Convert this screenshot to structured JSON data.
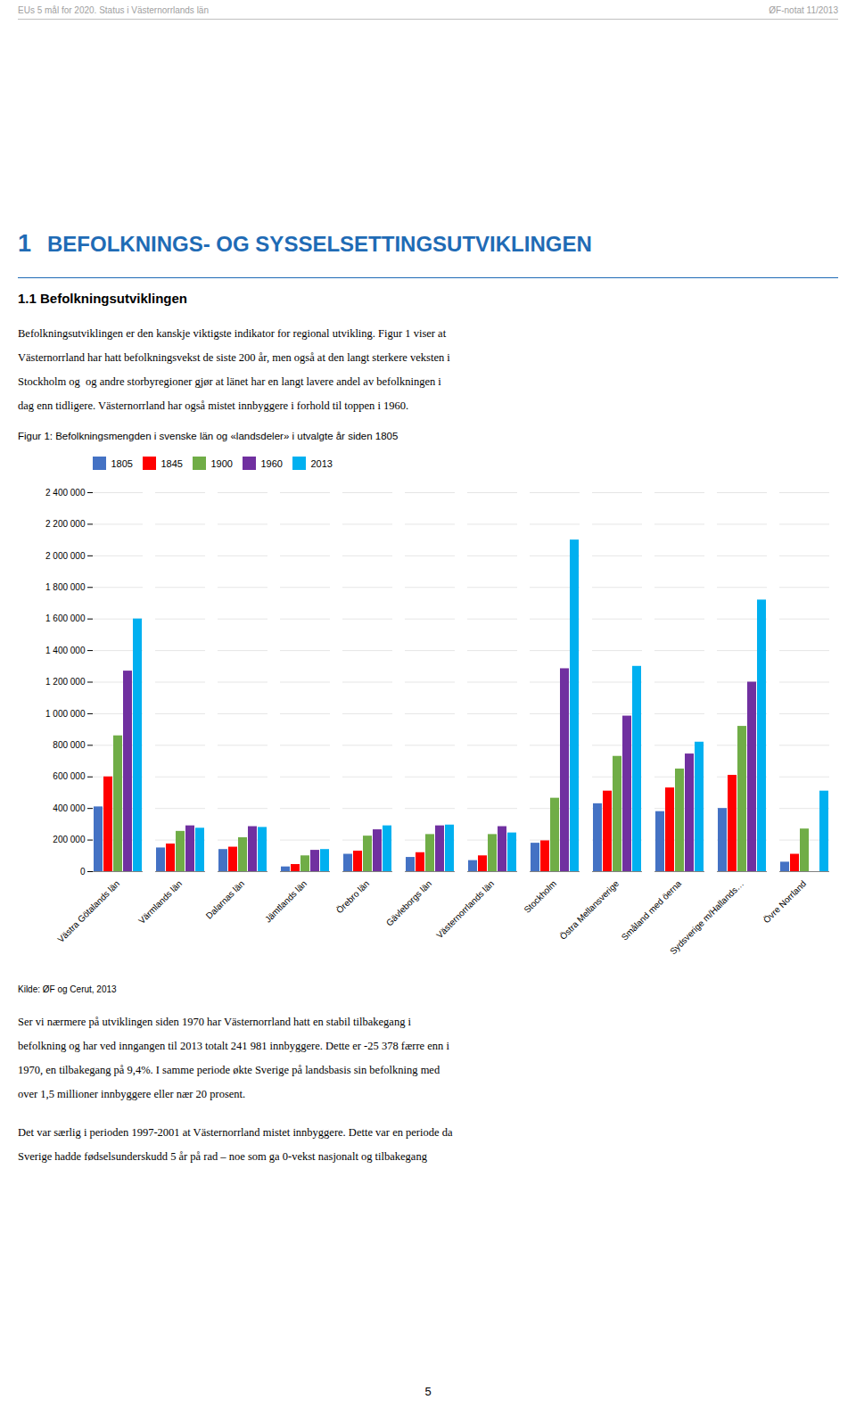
{
  "header_left": "EUs 5 mål for 2020. Status i Västernorrlands län",
  "header_right": "ØF-notat 11/2013",
  "section_number": "1",
  "section_title": "BEFOLKNINGS- OG SYSSELSETTINGSUTVIKLINGEN",
  "subsection": "1.1  Befolkningsutviklingen",
  "body_lines": [
    "Befolkningsutviklingen er den kanskje viktigste indikator for regional utvikling. Figur 1 viser at",
    "Västernorrland har hatt befolkningsvekst de siste 200 år, men også at den langt sterkere veksten i",
    "Stockholm og  og andre storbyregioner gjør at länet har en langt lavere andel av befolkningen i",
    "dag enn tidligere. Västernorrland har også mistet innbyggere i forhold til toppen i 1960."
  ],
  "source": "Kilde: ØF og Cerut, 2013",
  "footer1_lines": [
    "Ser vi nærmere på utviklingen siden 1970 har Västernorrland hatt en stabil tilbakegang i",
    "befolkning og har ved inngangen til 2013 totalt 241 981 innbyggere. Dette er -25 378 færre enn i",
    "1970, en tilbakegang på 9,4%. I samme periode økte Sverige på landsbasis sin befolkning med",
    "over 1,5 millioner innbyggere eller nær 20 prosent."
  ],
  "footer2_lines": [
    "Det var særlig i perioden 1997-2001 at Västernorrland mistet innbyggere. Dette var en periode da",
    "Sverige hadde fødselsunderskudd 5 år på rad – noe som ga 0-vekst nasjonalt og tilbakegang"
  ],
  "page_number": "5",
  "chart_data": {
    "type": "bar",
    "title": "Figur 1: Befolkningsmengden i svenske län og «landsdeler» i utvalgte år siden 1805",
    "categories": [
      "Västra Götalands län",
      "Värmlands län",
      "Dalarnas län",
      "Jämtlands län",
      "Örebro län",
      "Gävleborgs län",
      "Västernorrlands län",
      "Stockholm",
      "Östra Mellansverige",
      "Småland med öerna",
      "Sydsverige m/Hallands…",
      "Övre Norrland"
    ],
    "series": [
      {
        "name": "1805",
        "color": "#4472C4",
        "values": [
          410000,
          150000,
          140000,
          30000,
          110000,
          90000,
          70000,
          180000,
          430000,
          380000,
          400000,
          60000
        ]
      },
      {
        "name": "1845",
        "color": "#FF0000",
        "values": [
          600000,
          175000,
          155000,
          45000,
          130000,
          120000,
          100000,
          195000,
          510000,
          530000,
          610000,
          110000
        ]
      },
      {
        "name": "1900",
        "color": "#70AD47",
        "values": [
          860000,
          255000,
          215000,
          100000,
          225000,
          235000,
          235000,
          465000,
          730000,
          650000,
          920000,
          270000
        ]
      },
      {
        "name": "1960",
        "color": "#7030A0",
        "values": [
          1270000,
          290000,
          285000,
          135000,
          265000,
          290000,
          285000,
          1285000,
          985000,
          745000,
          1200000,
          0
        ]
      },
      {
        "name": "2013",
        "color": "#00B0F0",
        "values": [
          1600000,
          275000,
          280000,
          140000,
          290000,
          295000,
          245000,
          2100000,
          1300000,
          820000,
          1720000,
          510000
        ]
      }
    ],
    "ylim": [
      0,
      2400000
    ],
    "yticks": [
      0,
      {
        "value": 200000,
        "label": "200 000"
      },
      {
        "value": 400000,
        "label": "400 000"
      },
      {
        "value": 600000,
        "label": "600 000"
      },
      {
        "value": 800000,
        "label": "800 000"
      },
      {
        "value": 1000000,
        "label": "1 000 000"
      },
      {
        "value": 1200000,
        "label": "1 200 000"
      },
      {
        "value": 1400000,
        "label": "1 400 000"
      },
      {
        "value": 1600000,
        "label": "1 600 000"
      },
      {
        "value": 1800000,
        "label": "1 800 000"
      },
      {
        "value": 2000000,
        "label": "2 000 000"
      },
      {
        "value": 2200000,
        "label": "2 200 000"
      },
      {
        "value": 2400000,
        "label": "2 400 000"
      }
    ],
    "grid": true,
    "legend": "upper left"
  }
}
